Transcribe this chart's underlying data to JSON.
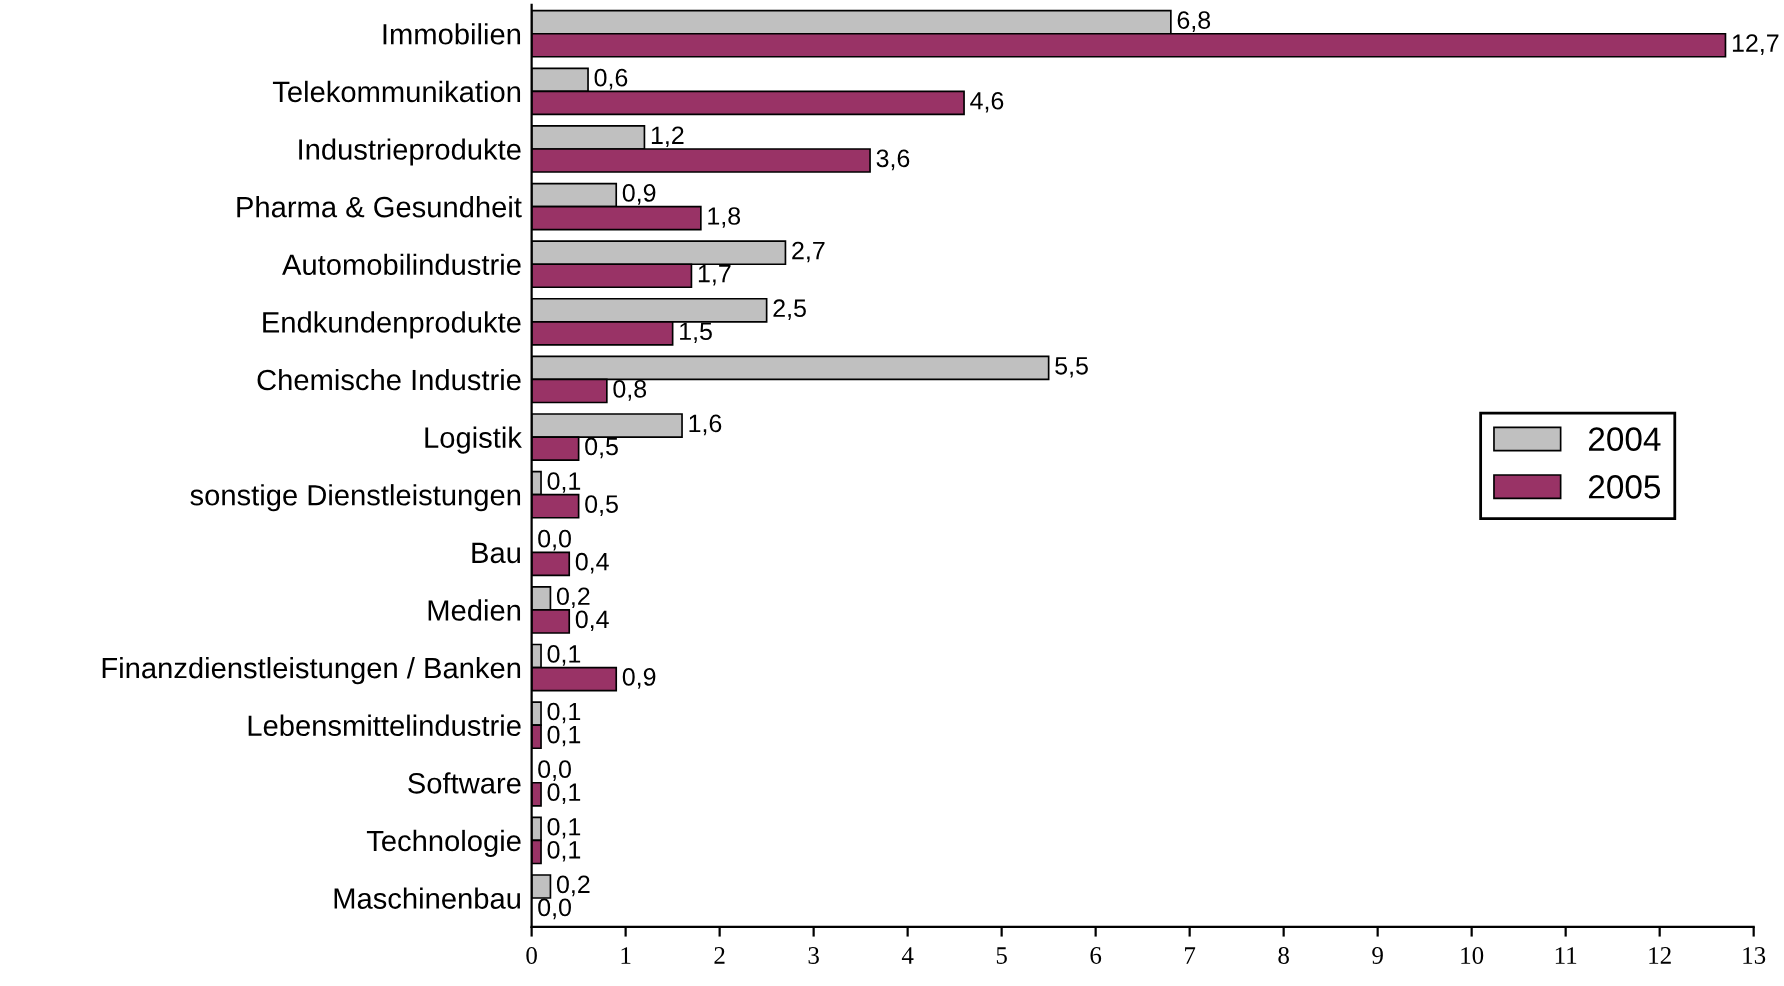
{
  "chart_data": {
    "type": "bar",
    "orientation": "horizontal",
    "categories": [
      "Immobilien",
      "Telekommunikation",
      "Industrieprodukte",
      "Pharma & Gesundheit",
      "Automobilindustrie",
      "Endkundenprodukte",
      "Chemische Industrie",
      "Logistik",
      "sonstige Dienstleistungen",
      "Bau",
      "Medien",
      "Finanzdienstleistungen / Banken",
      "Lebensmittelindustrie",
      "Software",
      "Technologie",
      "Maschinenbau"
    ],
    "series": [
      {
        "name": "2004",
        "color": "#c0c0c0",
        "values": [
          6.8,
          0.6,
          1.2,
          0.9,
          2.7,
          2.5,
          5.5,
          1.6,
          0.1,
          0.0,
          0.2,
          0.1,
          0.1,
          0.0,
          0.1,
          0.2
        ],
        "value_labels": [
          "6,8",
          "0,6",
          "1,2",
          "0,9",
          "2,7",
          "2,5",
          "5,5",
          "1,6",
          "0,1",
          "0,0",
          "0,2",
          "0,1",
          "0,1",
          "0,0",
          "0,1",
          "0,2"
        ]
      },
      {
        "name": "2005",
        "color": "#993366",
        "values": [
          12.7,
          4.6,
          3.6,
          1.8,
          1.7,
          1.5,
          0.8,
          0.5,
          0.5,
          0.4,
          0.4,
          0.9,
          0.1,
          0.1,
          0.1,
          0.0
        ],
        "value_labels": [
          "12,7",
          "4,6",
          "3,6",
          "1,8",
          "1,7",
          "1,5",
          "0,8",
          "0,5",
          "0,5",
          "0,4",
          "0,4",
          "0,9",
          "0,1",
          "0,1",
          "0,1",
          "0,0"
        ]
      }
    ],
    "xlim": [
      0,
      13
    ],
    "xticks": [
      0,
      1,
      2,
      3,
      4,
      5,
      6,
      7,
      8,
      9,
      10,
      11,
      12,
      13
    ],
    "grid": false,
    "legend": "right"
  }
}
